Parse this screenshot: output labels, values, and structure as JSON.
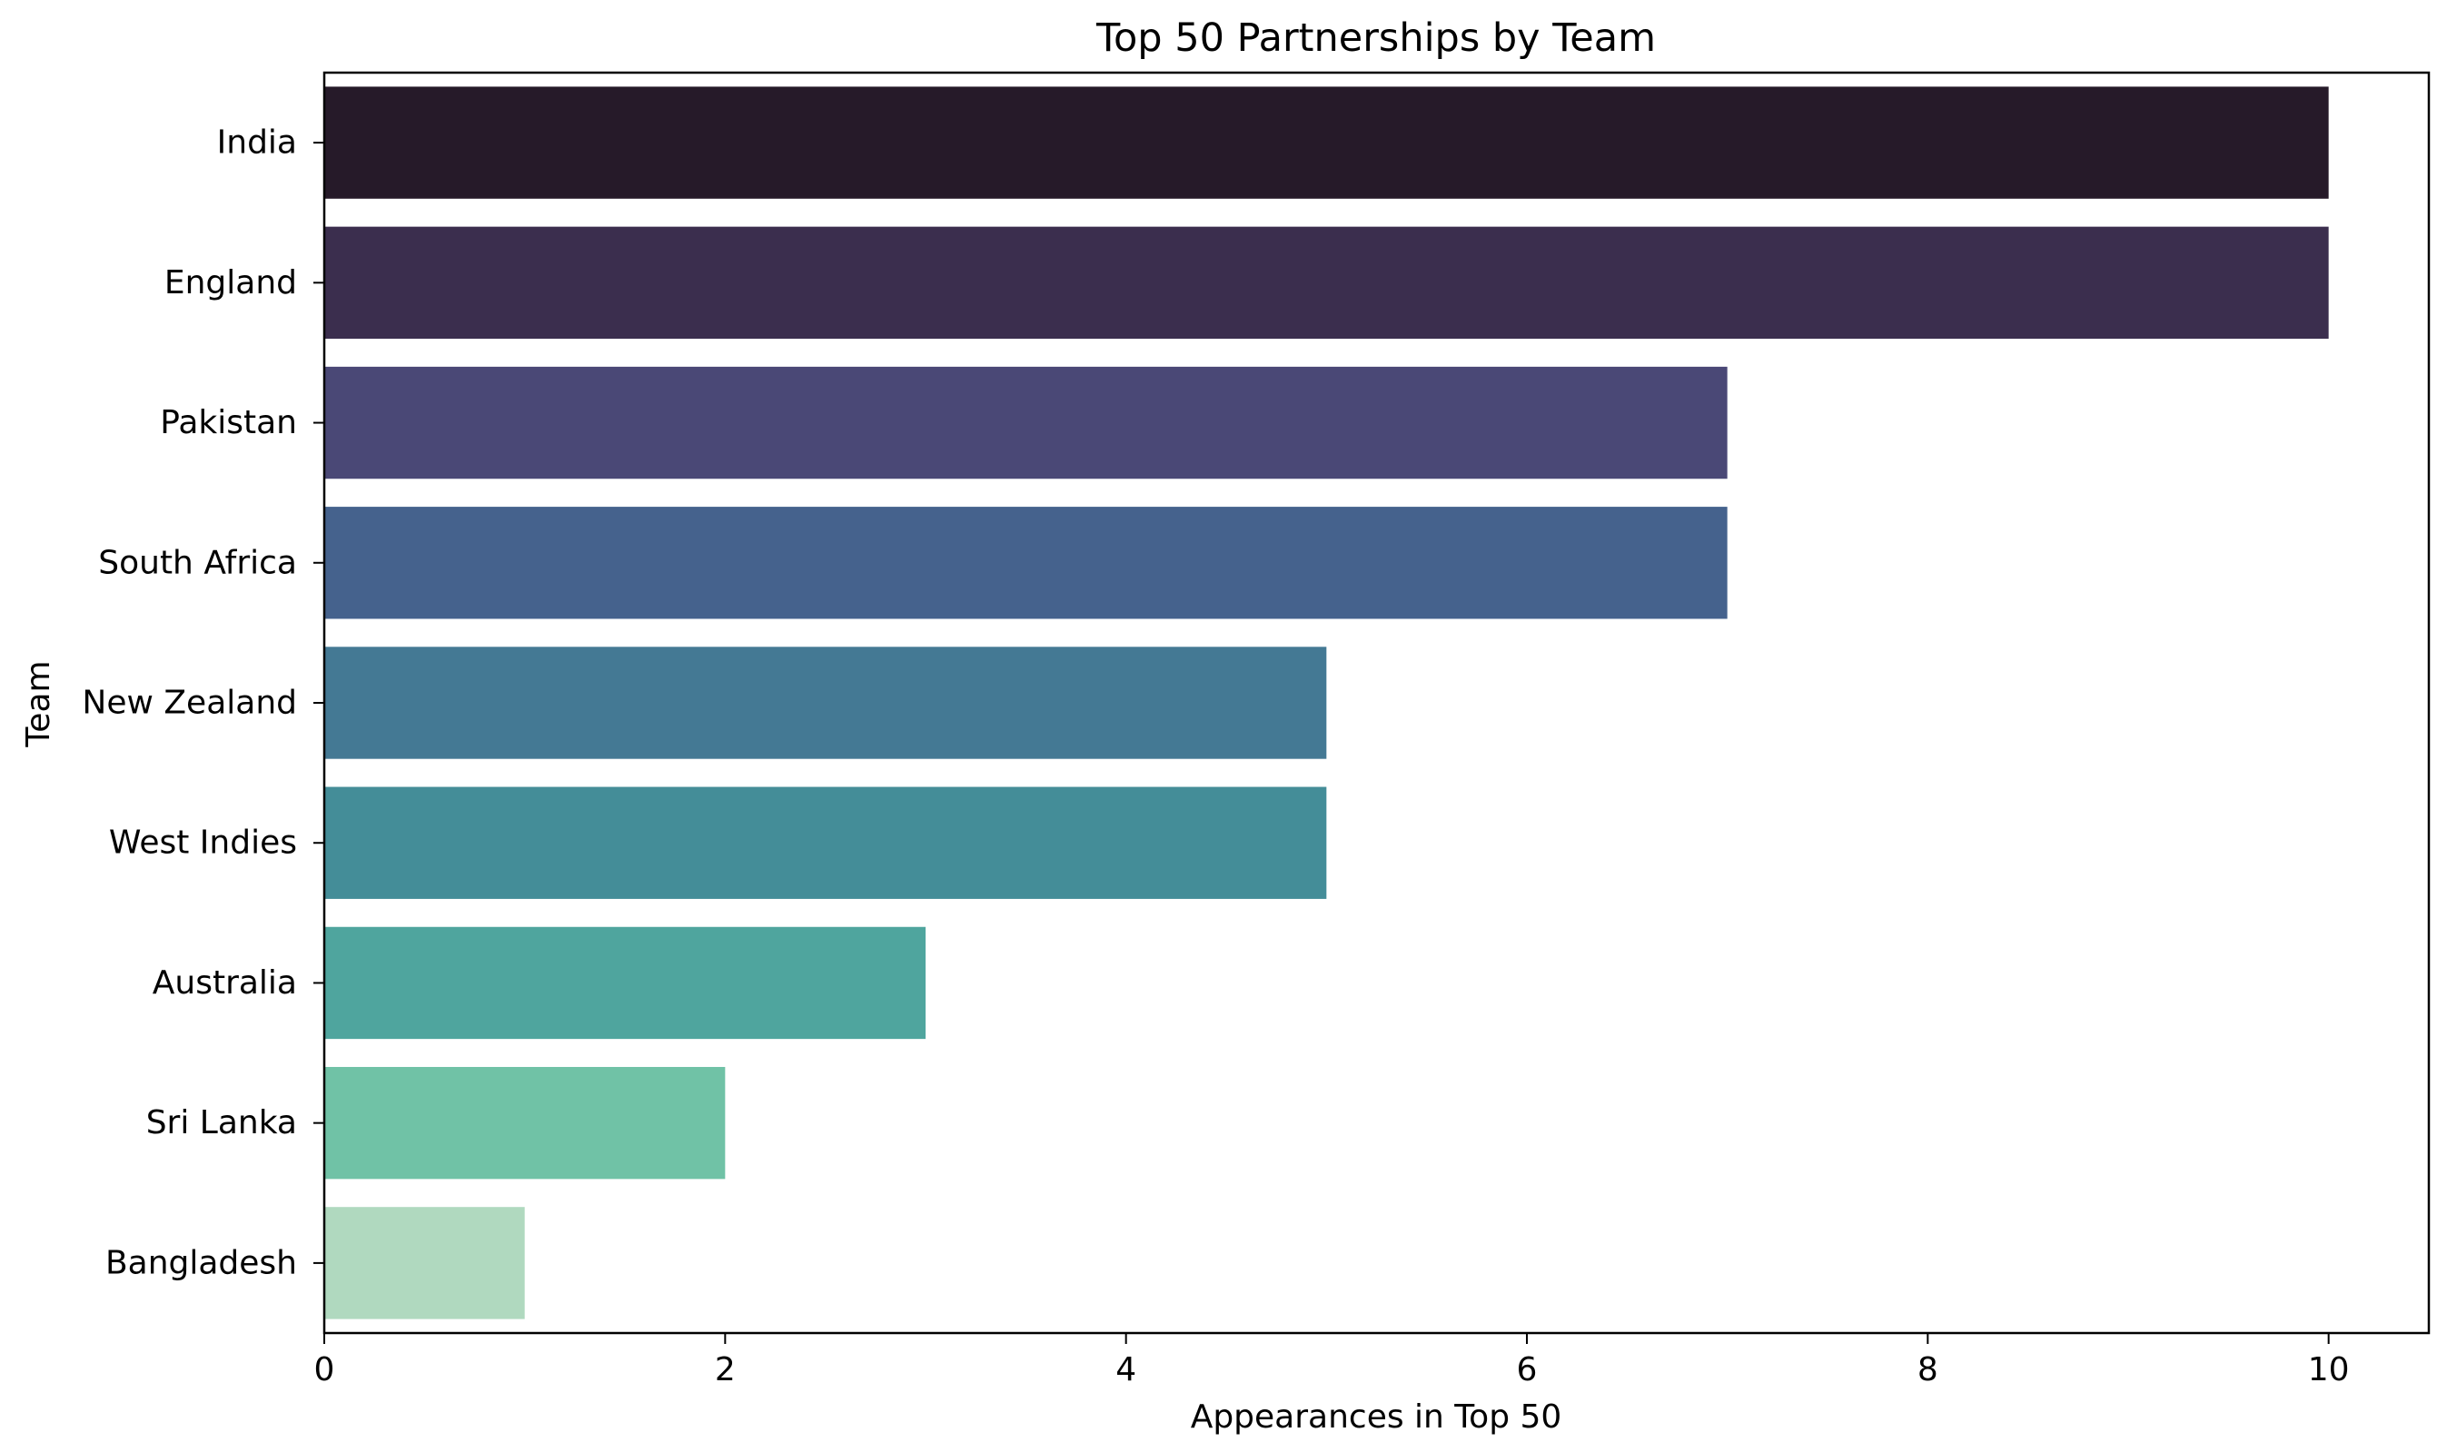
{
  "chart_data": {
    "type": "bar",
    "orientation": "horizontal",
    "title": "Top 50 Partnerships by Team",
    "xlabel": "Appearances in Top 50",
    "ylabel": "Team",
    "categories": [
      "India",
      "England",
      "Pakistan",
      "South Africa",
      "New Zealand",
      "West Indies",
      "Australia",
      "Sri Lanka",
      "Bangladesh"
    ],
    "values": [
      10,
      10,
      7,
      7,
      5,
      5,
      3,
      2,
      1
    ],
    "colors": [
      "#261a29",
      "#3b2e4e",
      "#4a4876",
      "#45628d",
      "#447994",
      "#448d98",
      "#4fa59e",
      "#70c2a6",
      "#b0d9bf"
    ],
    "xlim": [
      0,
      10.5
    ],
    "xticks": [
      "0",
      "2",
      "4",
      "6",
      "8",
      "10"
    ],
    "grid": false,
    "legend": "none"
  }
}
